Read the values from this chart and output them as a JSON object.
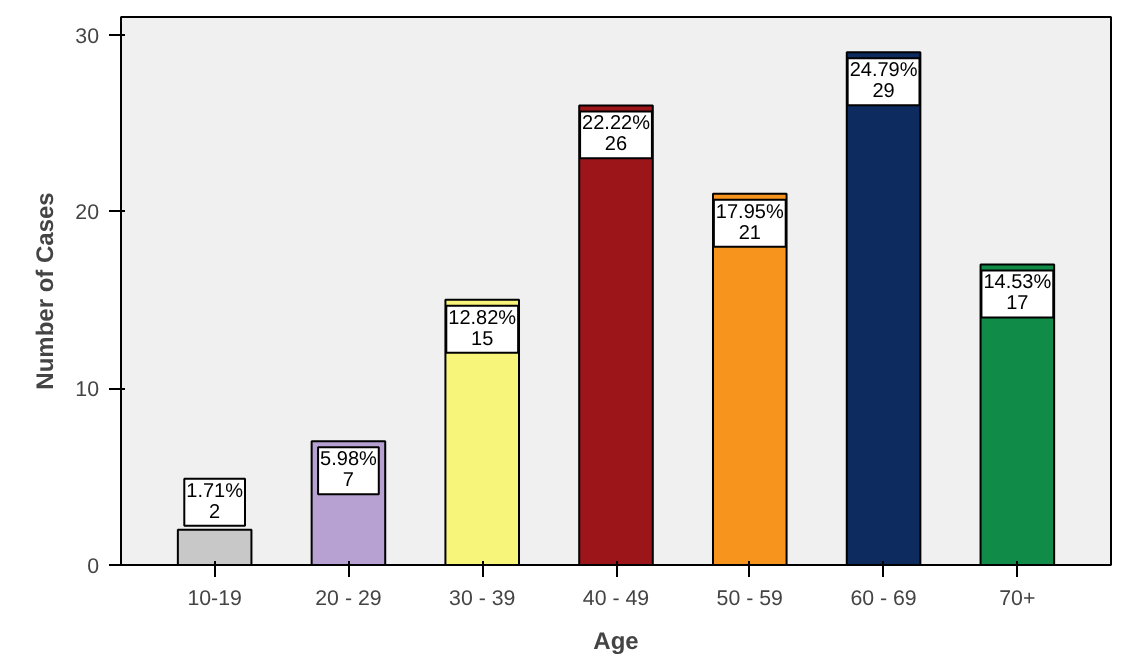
{
  "chart_data": {
    "type": "bar",
    "xlabel": "Age",
    "ylabel": "Number of Cases",
    "categories": [
      "10-19",
      "20 - 29",
      "30 - 39",
      "40 - 49",
      "50 - 59",
      "60 - 69",
      "70+"
    ],
    "values": [
      2,
      7,
      15,
      26,
      21,
      29,
      17
    ],
    "colors": [
      "#c8c8c8",
      "#b7a0d2",
      "#f8f67a",
      "#9c1519",
      "#f7941d",
      "#0d2b5e",
      "#118c48"
    ],
    "value_labels": [
      "1.71%\n2",
      "5.98%\n7",
      "12.82%\n15",
      "22.22%\n26",
      "17.95%\n21",
      "24.79%\n29",
      "14.53%\n17"
    ],
    "ylim": [
      0,
      31
    ],
    "yticks": [
      0,
      10,
      20,
      30
    ],
    "grid": false
  }
}
